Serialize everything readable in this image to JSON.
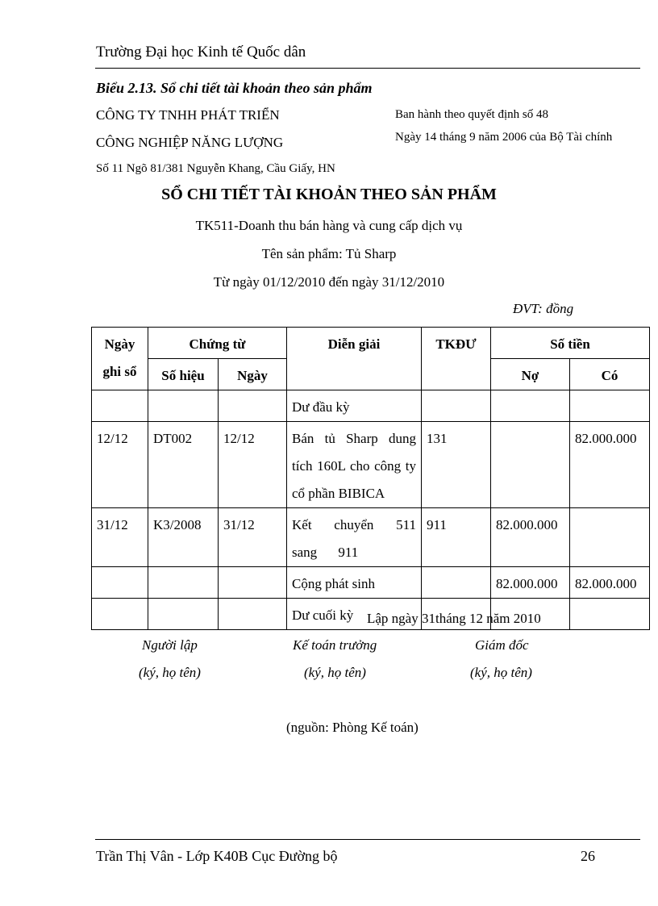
{
  "header": {
    "school": "Trường Đại học Kinh tế Quốc dân"
  },
  "caption": "Biểu 2.13. Sổ chi tiết tài khoản theo sản phẩm",
  "company": {
    "line1": "CÔNG TY TNHH PHÁT TRIỂN",
    "line2": "CÔNG NGHIỆP NĂNG LƯỢNG",
    "address": "Số 11 Ngõ 81/381 Nguyễn Khang, Cầu Giấy, HN"
  },
  "regulation": {
    "line1": "Ban hành theo quyết định số 48",
    "line2": "Ngày 14 tháng 9 năm 2006 của Bộ Tài chính"
  },
  "title": "SỔ CHI TIẾT TÀI KHOẢN THEO SẢN PHẨM",
  "account": "TK511-Doanh thu bán hàng và cung cấp dịch vụ",
  "product": "Tên sản phẩm: Tủ Sharp",
  "period": "Từ ngày 01/12/2010  đến ngày 31/12/2010",
  "unit": "ĐVT: đồng",
  "table": {
    "headers": {
      "ngay_ghi_so_1": "Ngày",
      "ngay_ghi_so_2": "ghi sổ",
      "chung_tu": "Chứng từ",
      "so_hieu": "Số hiệu",
      "ngay": "Ngày",
      "dien_giai": "Diễn giải",
      "tkdu": "TKĐƯ",
      "so_tien": "Số tiền",
      "no": "Nợ",
      "co": "Có"
    },
    "rows": [
      {
        "ngay_ghi_so": "",
        "so_hieu": "",
        "ngay": "",
        "dien_giai": "Dư đầu kỳ",
        "tkdu": "",
        "no": "",
        "co": ""
      },
      {
        "ngay_ghi_so": "12/12",
        "so_hieu": "DT002",
        "ngay": "12/12",
        "dien_giai": "Bán tủ Sharp dung tích 160L cho công ty cổ phần BIBICA",
        "tkdu": "131",
        "no": "",
        "co": "82.000.000"
      },
      {
        "ngay_ghi_so": "31/12",
        "so_hieu": "K3/2008",
        "ngay": "31/12",
        "dien_giai": "Kết chuyển 511 sang 911",
        "tkdu": "911",
        "no": "82.000.000",
        "co": ""
      },
      {
        "ngay_ghi_so": "",
        "so_hieu": "",
        "ngay": "",
        "dien_giai": "Cộng phát sinh",
        "tkdu": "",
        "no": "82.000.000",
        "co": "82.000.000"
      },
      {
        "ngay_ghi_so": "",
        "so_hieu": "",
        "ngay": "",
        "dien_giai": "Dư cuối kỳ",
        "tkdu": "",
        "no": "",
        "co": ""
      }
    ]
  },
  "date_line": "Lập ngày 31tháng 12 năm 2010",
  "signatures": [
    {
      "role": "Người lập",
      "note": "(ký, họ tên)"
    },
    {
      "role": "Kế toán trưởng",
      "note": "(ký, họ tên)"
    },
    {
      "role": "Giám đốc",
      "note": "(ký, họ tên)"
    }
  ],
  "source": "(nguồn: Phòng Kế toán)",
  "footer": {
    "author": "Trần Thị Vân - Lớp K40B   Cục Đường bộ",
    "page": "26"
  }
}
